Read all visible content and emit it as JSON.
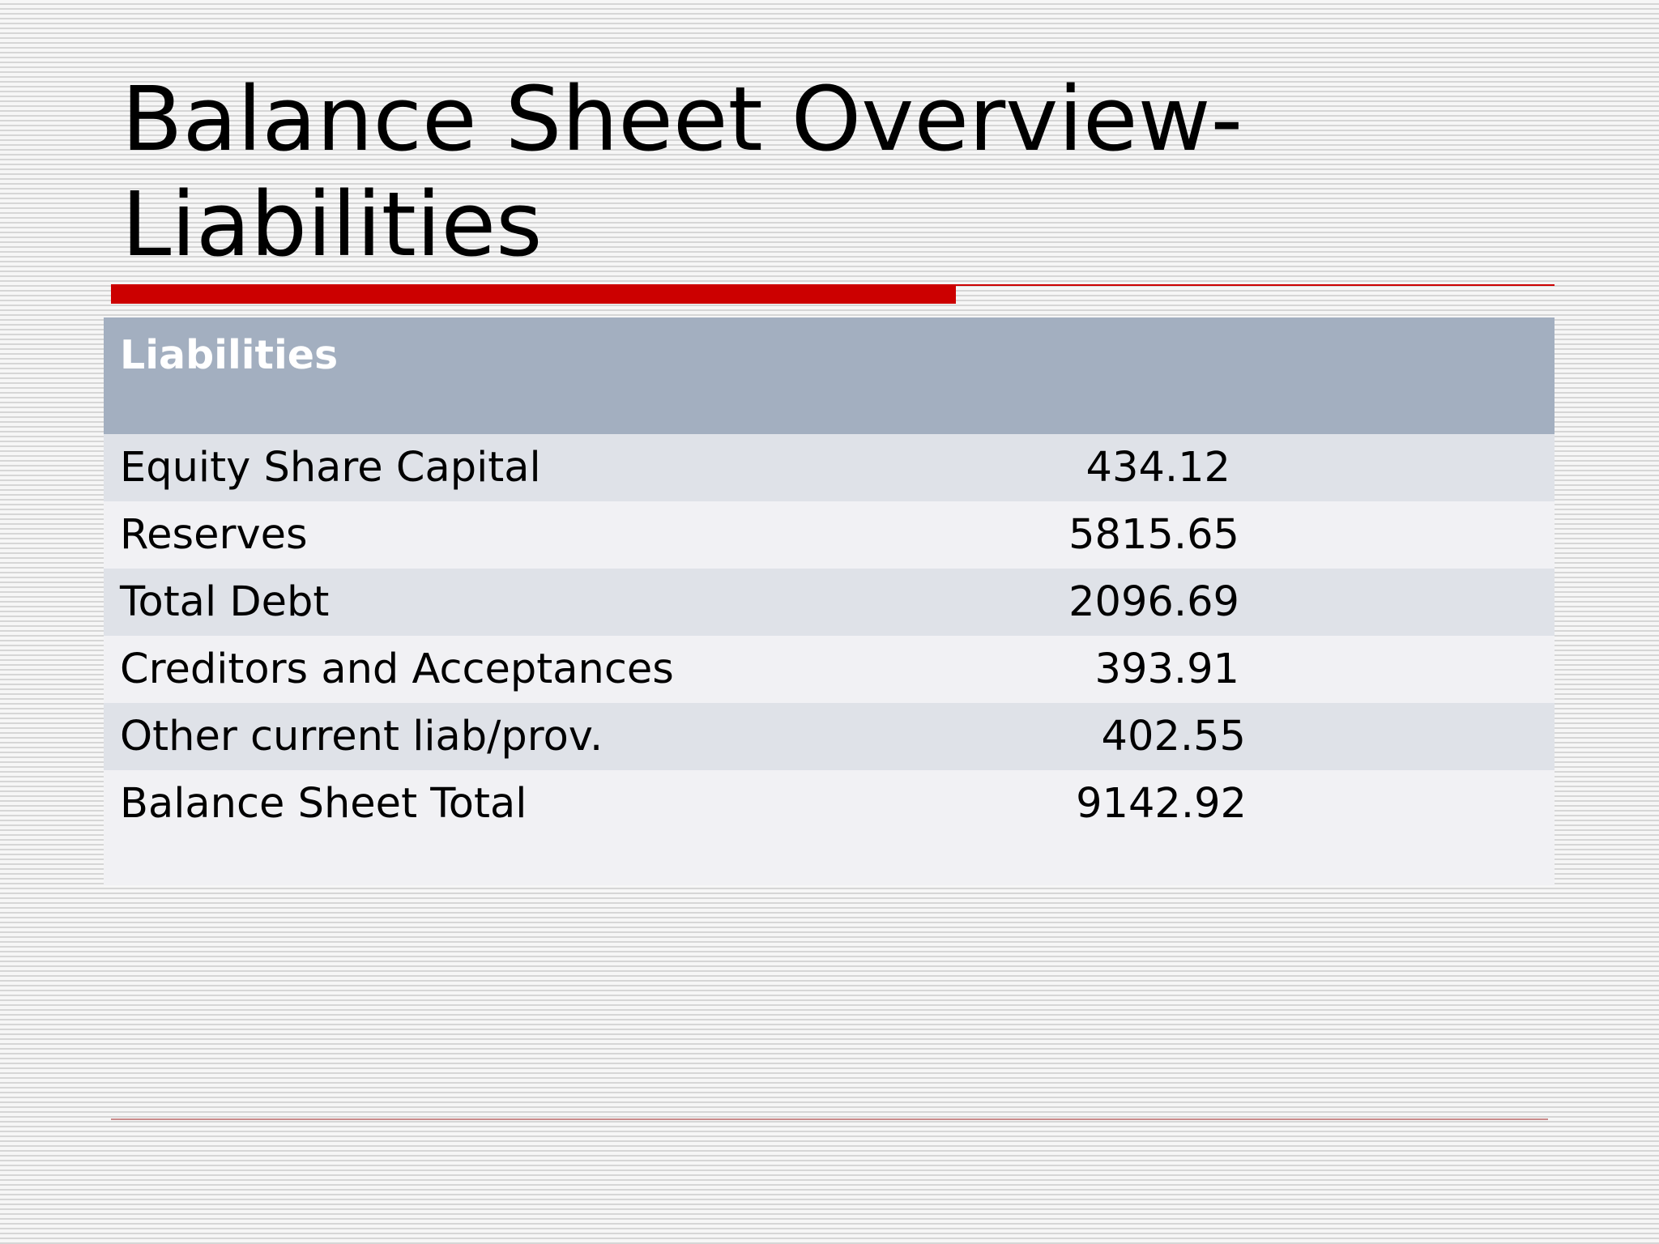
{
  "slide": {
    "title": "Balance Sheet Overview-\nLiabilities"
  },
  "table": {
    "header": "Liabilities",
    "rows": [
      {
        "label": "Equity Share Capital",
        "value": "434.12"
      },
      {
        "label": "Reserves",
        "value": "5815.65"
      },
      {
        "label": "Total Debt",
        "value": "2096.69"
      },
      {
        "label": "Creditors and Acceptances",
        "value": "393.91"
      },
      {
        "label": "Other current liab/prov.",
        "value": "402.55"
      },
      {
        "label": "Balance Sheet Total",
        "value": "9142.92"
      }
    ]
  },
  "colors": {
    "accent": "#cc0000",
    "table_header": "#a3afc0",
    "row_dark": "#dfe2e8",
    "row_light": "#f1f1f4"
  }
}
